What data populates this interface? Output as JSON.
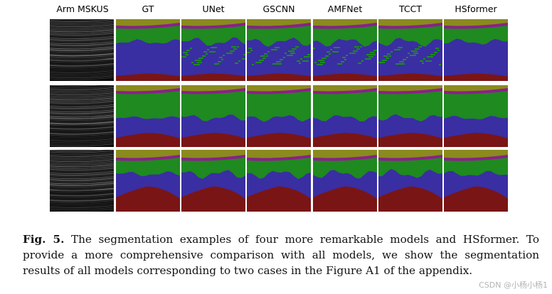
{
  "figure": {
    "columns": [
      "Arm MSKUS",
      "GT",
      "UNet",
      "GSCNN",
      "AMFNet",
      "TCCT",
      "HSformer"
    ],
    "row_count": 3,
    "colors": {
      "top_band": "#8a8a1e",
      "purple_line": "#8b1f8b",
      "green_region": "#1f8a1f",
      "blue_region": "#3a2ea3",
      "red_region": "#7a1515",
      "ultrasound_bg": "#141414"
    }
  },
  "caption": {
    "label": "Fig. 5.",
    "text": "The segmentation examples of four more remarkable models and HSformer. To provide a more comprehensive comparison with all models, we show the segmentation results of all models corresponding to two cases in the Figure A1 of the appendix."
  },
  "watermark": "CSDN @小杨小杨1"
}
